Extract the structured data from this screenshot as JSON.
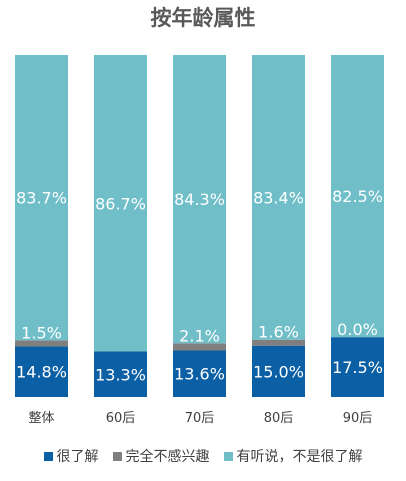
{
  "chart_data": {
    "type": "bar",
    "stacked": true,
    "title": "按年龄属性",
    "categories": [
      "整体",
      "60后",
      "70后",
      "80后",
      "90后"
    ],
    "series": [
      {
        "name": "很了解",
        "values": [
          14.8,
          13.3,
          13.6,
          15.0,
          17.5
        ],
        "labels": [
          "14.8%",
          "13.3%",
          "13.6%",
          "15.0%",
          "17.5%"
        ],
        "color": "#0B5FA5"
      },
      {
        "name": "完全不感兴趣",
        "values": [
          1.5,
          0.0,
          2.1,
          1.6,
          0.0
        ],
        "labels": [
          "1.5%",
          "",
          "2.1%",
          "1.6%",
          "0.0%"
        ],
        "color": "#7F7F7F"
      },
      {
        "name": "有听说，不是很了解",
        "values": [
          83.7,
          86.7,
          84.3,
          83.4,
          82.5
        ],
        "labels": [
          "83.7%",
          "86.7%",
          "84.3%",
          "83.4%",
          "82.5%"
        ],
        "color": "#6FBEC8"
      }
    ],
    "ylim": [
      0,
      100
    ],
    "legend_position": "bottom"
  }
}
